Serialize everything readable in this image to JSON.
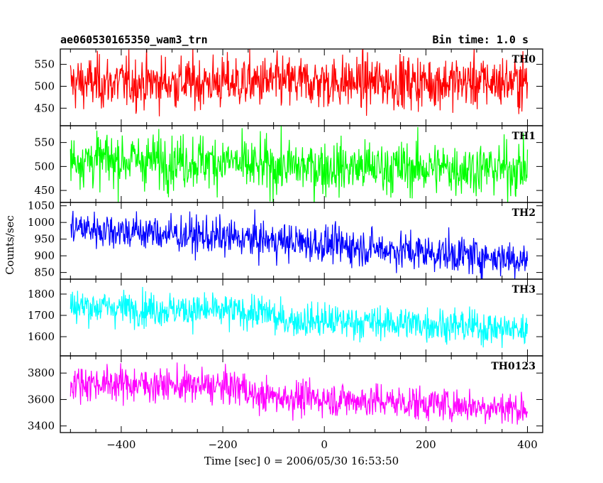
{
  "chart_data": {
    "type": "line",
    "title": "ae060530165350_wam3_trn",
    "subtitle": "Bin time: 1.0 s",
    "xlabel": "Time [sec] 0 = 2006/05/30 16:53:50",
    "ylabel": "Counts/sec",
    "xlim": [
      -520,
      430
    ],
    "xticks": [
      -400,
      -200,
      0,
      200,
      400
    ],
    "x_start": -500,
    "x_end": 400,
    "bin": 1.0,
    "legend": "none",
    "grid": false,
    "panels": [
      {
        "name": "TH0",
        "color": "#ff0000",
        "ylim": [
          410,
          585
        ],
        "yticks": [
          450,
          500,
          550
        ],
        "trend": [
          [
            -500,
            508
          ],
          [
            400,
            510
          ]
        ],
        "noise": 30
      },
      {
        "name": "TH1",
        "color": "#00ff00",
        "ylim": [
          425,
          585
        ],
        "yticks": [
          450,
          500,
          550
        ],
        "trend": [
          [
            -500,
            515
          ],
          [
            -170,
            510
          ],
          [
            -170,
            500
          ],
          [
            400,
            495
          ]
        ],
        "noise": 28
      },
      {
        "name": "TH2",
        "color": "#0000ff",
        "ylim": [
          830,
          1060
        ],
        "yticks": [
          850,
          900,
          950,
          1000,
          1050
        ],
        "trend": [
          [
            -500,
            985
          ],
          [
            -250,
            960
          ],
          [
            0,
            935
          ],
          [
            200,
            910
          ],
          [
            400,
            890
          ]
        ],
        "noise": 28
      },
      {
        "name": "TH3",
        "color": "#00ffff",
        "ylim": [
          1510,
          1870
        ],
        "yticks": [
          1600,
          1700,
          1800
        ],
        "trend": [
          [
            -500,
            1745
          ],
          [
            -100,
            1710
          ],
          [
            -100,
            1680
          ],
          [
            200,
            1660
          ],
          [
            400,
            1630
          ]
        ],
        "noise": 40
      },
      {
        "name": "TH0123",
        "color": "#ff00ff",
        "ylim": [
          3350,
          3930
        ],
        "yticks": [
          3400,
          3600,
          3800
        ],
        "trend": [
          [
            -500,
            3730
          ],
          [
            -150,
            3690
          ],
          [
            -150,
            3630
          ],
          [
            150,
            3580
          ],
          [
            400,
            3530
          ]
        ],
        "noise": 65
      }
    ]
  }
}
